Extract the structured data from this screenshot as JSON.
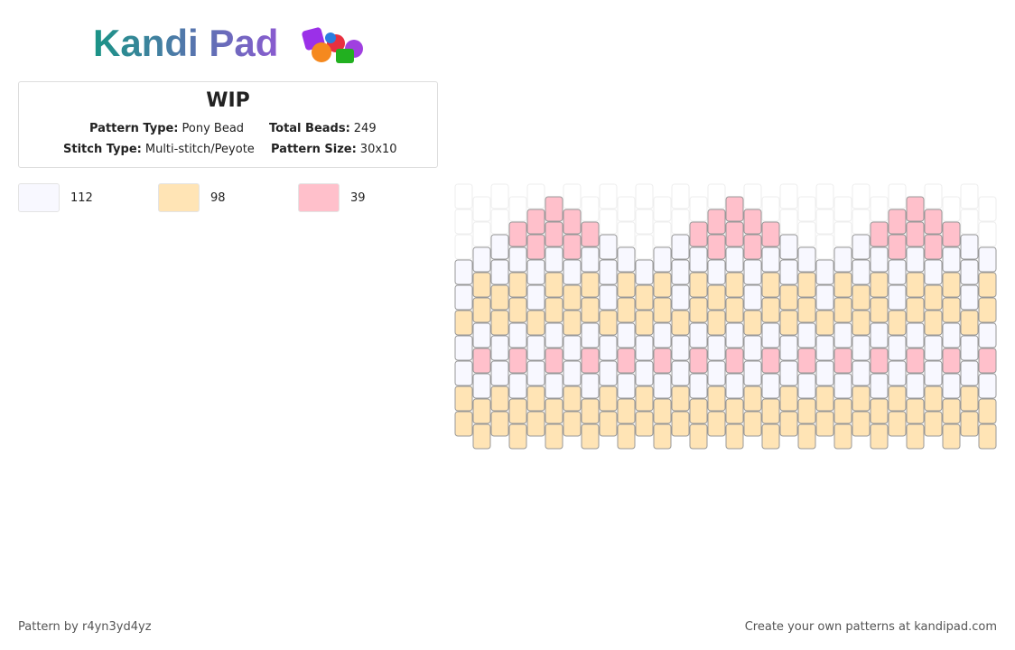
{
  "logo": "Kandi Pad",
  "header": {
    "title": "WIP",
    "fields": [
      {
        "label": "Pattern Type:",
        "value": "Pony Bead"
      },
      {
        "label": "Total Beads:",
        "value": "249"
      },
      {
        "label": "Stitch Type:",
        "value": "Multi-stitch/Peyote"
      },
      {
        "label": "Pattern Size:",
        "value": "30x10"
      }
    ]
  },
  "legend": [
    {
      "color": "#f8f8ff",
      "count": 112
    },
    {
      "color": "#ffe4b5",
      "count": 98
    },
    {
      "color": "#ffc0cb",
      "count": 39
    }
  ],
  "footer": {
    "left": "Pattern by r4yn3yd4yz",
    "right": "Create your own patterns at kandipad.com"
  }
}
